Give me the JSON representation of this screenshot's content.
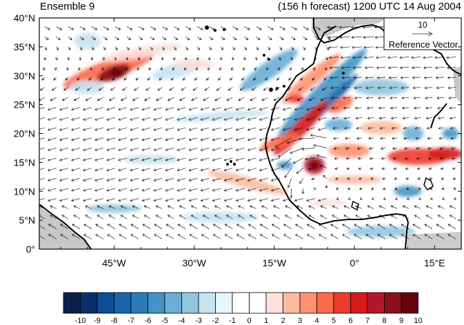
{
  "header": {
    "left": "Ensemble 9",
    "right": "(156 h forecast) 1200 UTC 14 Aug 2004"
  },
  "reference_vector": {
    "magnitude_label": "10",
    "label": "Reference Vector"
  },
  "map": {
    "lat_ticks": [
      "40°N",
      "35°N",
      "30°N",
      "25°N",
      "20°N",
      "15°N",
      "10°N",
      "5°N",
      "0°"
    ],
    "lon_ticks": [
      "45°W",
      "30°W",
      "15°W",
      "0°",
      "15°E"
    ],
    "lat_range": [
      0,
      40
    ],
    "lon_range": [
      -59,
      20
    ],
    "colors": {
      "land_mask": "#c8c8c8",
      "coastline": "#000000",
      "vector": "#000000"
    }
  },
  "colorbar": {
    "labels": [
      "-10",
      "-9",
      "-8",
      "-7",
      "-6",
      "-5",
      "-4",
      "-3",
      "-2",
      "-1",
      "0",
      "1",
      "2",
      "3",
      "4",
      "5",
      "6",
      "7",
      "8",
      "9",
      "10"
    ],
    "colors": [
      "#0b1f4b",
      "#08306b",
      "#0b4d94",
      "#1765ab",
      "#2b7bba",
      "#4393c3",
      "#6baed6",
      "#92c5de",
      "#c6e3ef",
      "#e6f5fb",
      "#ffffff",
      "#ffffff",
      "#fde0dd",
      "#fcbba1",
      "#fc9272",
      "#fb6a4a",
      "#ef3b2c",
      "#d7191c",
      "#b2182b",
      "#8b0e18",
      "#67000d"
    ]
  }
}
